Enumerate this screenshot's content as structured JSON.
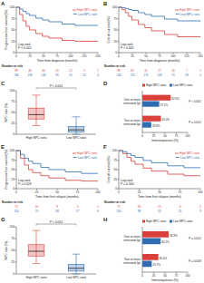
{
  "chart_data": [
    {
      "type": "line",
      "title": "A",
      "line_style": "step",
      "legend": "upper right",
      "xlabel": "Time from diagnosis (months)",
      "ylabel": "Progression-free survival (%)",
      "x": [
        0,
        6,
        12,
        18,
        24,
        36,
        48,
        60,
        84,
        108,
        150
      ],
      "series": [
        {
          "name": "High NPC ratio",
          "color": "#d9403a",
          "values": [
            100,
            84,
            70,
            58,
            50,
            42,
            36,
            32,
            27,
            25,
            25
          ]
        },
        {
          "name": "Low NPC ratio",
          "color": "#2f6db3",
          "values": [
            100,
            96,
            91,
            86,
            82,
            76,
            72,
            68,
            63,
            60,
            60
          ]
        }
      ],
      "xlim": [
        0,
        150
      ],
      "xticks": [
        0,
        25,
        50,
        75,
        100,
        125,
        150
      ],
      "ylim": [
        0,
        100
      ],
      "yticks": [
        0,
        25,
        50,
        75,
        100
      ],
      "annotations": [
        "Log-rank",
        "P < 0.001"
      ],
      "risk_table": {
        "title": "Number at risk",
        "rows": [
          [
            98,
            46,
            30,
            20,
            12,
            5,
            1
          ],
          [
            246,
            190,
            140,
            95,
            55,
            22,
            4
          ]
        ]
      }
    },
    {
      "type": "line",
      "title": "B",
      "line_style": "step",
      "legend": "upper right",
      "xlabel": "Time from diagnosis (months)",
      "ylabel": "Overall survival (%)",
      "x": [
        0,
        6,
        12,
        18,
        24,
        36,
        48,
        60,
        84,
        108,
        150
      ],
      "series": [
        {
          "name": "High NPC ratio",
          "color": "#d9403a",
          "values": [
            100,
            95,
            88,
            80,
            72,
            62,
            55,
            48,
            40,
            35,
            33
          ]
        },
        {
          "name": "Low NPC ratio",
          "color": "#2f6db3",
          "values": [
            100,
            99,
            97,
            95,
            93,
            88,
            84,
            80,
            74,
            70,
            68
          ]
        }
      ],
      "xlim": [
        0,
        150
      ],
      "xticks": [
        0,
        25,
        50,
        75,
        100,
        125,
        150
      ],
      "ylim": [
        0,
        100
      ],
      "yticks": [
        0,
        25,
        50,
        75,
        100
      ],
      "annotations": [
        "Log-rank",
        "P < 0.001"
      ],
      "risk_table": {
        "title": "Number at risk",
        "rows": [
          [
            98,
            62,
            41,
            27,
            16,
            7,
            1
          ],
          [
            246,
            215,
            170,
            118,
            70,
            28,
            5
          ]
        ]
      }
    },
    {
      "type": "box",
      "title": "C",
      "ylabel": "NPC ratio (%)",
      "categories": [
        "High NPC ratio",
        "Low NPC ratio"
      ],
      "colors": [
        "#d9403a",
        "#2f6db3"
      ],
      "boxes": [
        {
          "min": 20,
          "q1": 35,
          "median": 45,
          "q3": 60,
          "max": 90
        },
        {
          "min": 0,
          "q1": 5,
          "median": 10,
          "q3": 18,
          "max": 40
        }
      ],
      "ylim": [
        0,
        100
      ],
      "yticks": [
        0,
        25,
        50,
        75,
        100
      ],
      "annotations": [
        "P < 0.001"
      ]
    },
    {
      "type": "bar",
      "title": "D",
      "orientation": "horizontal",
      "legend": "top",
      "data_labels": true,
      "xlabel": "Immunoparesis (%)",
      "categories": [
        "One or more untreated lgs",
        "Two or more untreated lgs"
      ],
      "series": [
        {
          "name": "High NPC ratio",
          "color": "#d9403a",
          "values": [
            62.5,
            41.0
          ],
          "value_labels": [
            "62.5%",
            "41.0%"
          ]
        },
        {
          "name": "Low NPC ratio",
          "color": "#2f6db3",
          "values": [
            37.2,
            19.8
          ],
          "value_labels": [
            "37.2%",
            "19.8%"
          ]
        }
      ],
      "xlim": [
        0,
        100
      ],
      "xticks": [
        0,
        25,
        50,
        75,
        100
      ],
      "annotations": [
        "P < 0.001",
        "P = 0.001"
      ]
    },
    {
      "type": "line",
      "title": "E",
      "line_style": "step",
      "legend": "upper right",
      "xlabel": "Time from first relapse (months)",
      "ylabel": "Progression-free survival (%)",
      "x": [
        0,
        5,
        10,
        15,
        20,
        30,
        40,
        60,
        80,
        100
      ],
      "series": [
        {
          "name": "High NPC ratio",
          "color": "#d9403a",
          "values": [
            100,
            80,
            62,
            50,
            42,
            34,
            28,
            22,
            20,
            20
          ]
        },
        {
          "name": "Low NPC ratio",
          "color": "#2f6db3",
          "values": [
            100,
            90,
            80,
            72,
            66,
            56,
            50,
            44,
            40,
            40
          ]
        }
      ],
      "xlim": [
        0,
        100
      ],
      "xticks": [
        0,
        25,
        50,
        75,
        100
      ],
      "ylim": [
        0,
        100
      ],
      "yticks": [
        0,
        25,
        50,
        75,
        100
      ],
      "annotations": [
        "Log-rank",
        "P = 0.028"
      ],
      "risk_table": {
        "title": "Number at risk",
        "rows": [
          [
            72,
            20,
            9,
            4,
            1
          ],
          [
            150,
            70,
            38,
            17,
            6
          ]
        ]
      }
    },
    {
      "type": "line",
      "title": "F",
      "line_style": "step",
      "legend": "upper right",
      "xlabel": "Time from first relapse (months)",
      "ylabel": "Overall survival (%)",
      "x": [
        0,
        5,
        10,
        15,
        20,
        30,
        40,
        60,
        80,
        100
      ],
      "series": [
        {
          "name": "High NPC ratio",
          "color": "#d9403a",
          "values": [
            100,
            92,
            82,
            72,
            64,
            54,
            46,
            38,
            34,
            34
          ]
        },
        {
          "name": "Low NPC ratio",
          "color": "#2f6db3",
          "values": [
            100,
            97,
            92,
            87,
            82,
            74,
            68,
            60,
            55,
            55
          ]
        }
      ],
      "xlim": [
        0,
        100
      ],
      "xticks": [
        0,
        25,
        50,
        75,
        100
      ],
      "ylim": [
        0,
        100
      ],
      "yticks": [
        0,
        25,
        50,
        75,
        100
      ],
      "annotations": [
        "Log-rank",
        "P = 0.040"
      ],
      "risk_table": {
        "title": "Number at risk",
        "rows": [
          [
            72,
            33,
            15,
            6,
            2
          ],
          [
            150,
            98,
            55,
            25,
            9
          ]
        ]
      }
    },
    {
      "type": "box",
      "title": "G",
      "ylabel": "NPC ratio (%)",
      "categories": [
        "High NPC ratio",
        "Low NPC ratio"
      ],
      "colors": [
        "#d9403a",
        "#2f6db3"
      ],
      "boxes": [
        {
          "min": 22,
          "q1": 38,
          "median": 48,
          "q3": 62,
          "max": 92
        },
        {
          "min": 0,
          "q1": 6,
          "median": 12,
          "q3": 20,
          "max": 42
        }
      ],
      "ylim": [
        0,
        100
      ],
      "yticks": [
        0,
        25,
        50,
        75,
        100
      ],
      "annotations": [
        "P < 0.001"
      ]
    },
    {
      "type": "bar",
      "title": "H",
      "orientation": "horizontal",
      "legend": "top",
      "data_labels": true,
      "xlabel": "Immunoparesis (%)",
      "categories": [
        "One or more untreated lgs",
        "Two or more untreated lgs"
      ],
      "series": [
        {
          "name": "High NPC ratio",
          "color": "#d9403a",
          "values": [
            58.3,
            35.4
          ],
          "value_labels": [
            "58.3%",
            "35.4%"
          ]
        },
        {
          "name": "Low NPC ratio",
          "color": "#2f6db3",
          "values": [
            40.2,
            20.7
          ],
          "value_labels": [
            "40.2%",
            "20.7%"
          ]
        }
      ],
      "xlim": [
        0,
        100
      ],
      "xticks": [
        0,
        25,
        50,
        75,
        100
      ],
      "annotations": [
        "P = 0.001",
        "P = 0.003"
      ]
    }
  ]
}
